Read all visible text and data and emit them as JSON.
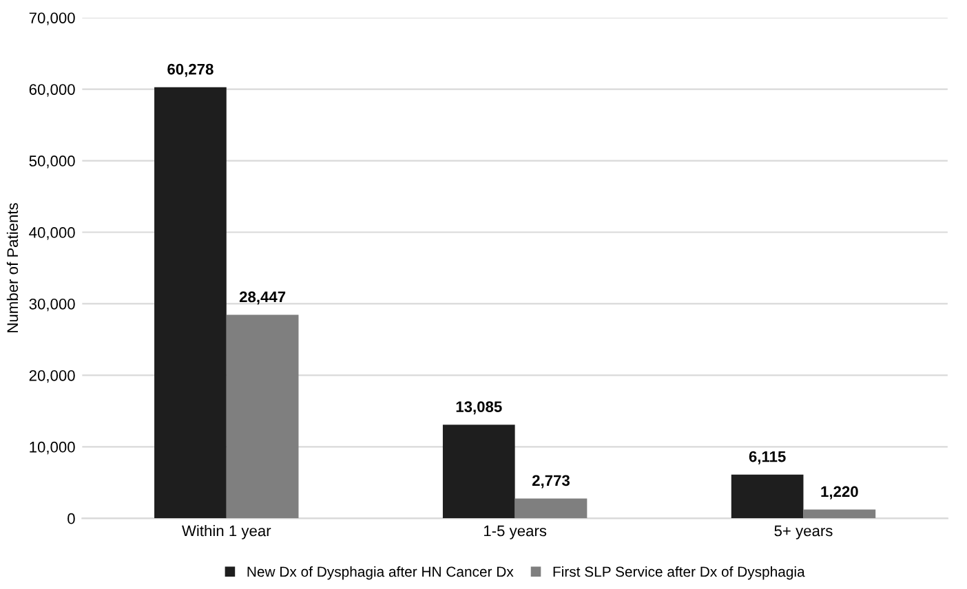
{
  "chart_data": {
    "type": "bar",
    "ylabel": "Number of Patients",
    "categories": [
      "Within 1 year",
      "1-5 years",
      "5+ years"
    ],
    "series": [
      {
        "name": "New Dx of Dysphagia after HN Cancer Dx",
        "color": "#1e1e1e",
        "values": [
          60278,
          13085,
          6115
        ],
        "value_labels": [
          "60,278",
          "13,085",
          "6,115"
        ]
      },
      {
        "name": "First SLP Service after Dx of Dysphagia",
        "color": "#7f7f7f",
        "values": [
          28447,
          2773,
          1220
        ],
        "value_labels": [
          "28,447",
          "2,773",
          "1,220"
        ]
      }
    ],
    "ylim": [
      0,
      70000
    ],
    "yticks": [
      {
        "value": 0,
        "label": "0"
      },
      {
        "value": 10000,
        "label": "10,000"
      },
      {
        "value": 20000,
        "label": "20,000"
      },
      {
        "value": 30000,
        "label": "30,000"
      },
      {
        "value": 40000,
        "label": "40,000"
      },
      {
        "value": 50000,
        "label": "50,000"
      },
      {
        "value": 60000,
        "label": "60,000"
      },
      {
        "value": 70000,
        "label": "70,000"
      }
    ],
    "grid": "y",
    "legend": "bottom"
  }
}
